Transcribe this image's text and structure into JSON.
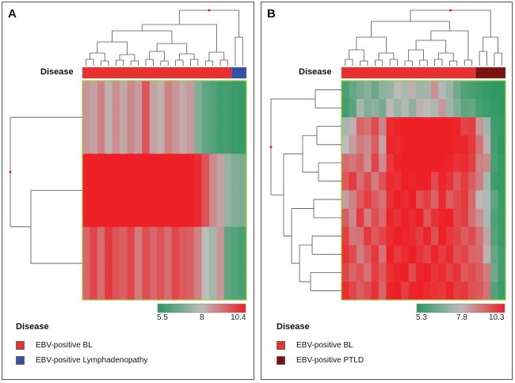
{
  "chart_data": [
    {
      "type": "heatmap",
      "panel_label": "A",
      "annotation_label": "Disease",
      "groups": [
        {
          "name": "EBV-positive BL",
          "color": "#e8312f",
          "sample_count": 20
        },
        {
          "name": "EBV-positive Lymphadenopathy",
          "color": "#3352a6",
          "sample_count": 2
        }
      ],
      "color_scale": {
        "low": 5.5,
        "mid": 8,
        "high": 10.4,
        "low_color": "#2a9860",
        "mid_color": "#bcbcbc",
        "high_color": "#ee1f25",
        "tick_labels": [
          "5.5",
          "8",
          "10.4"
        ]
      },
      "legend_title": "Disease",
      "legend": [
        {
          "label": "EBV-positive BL",
          "color": "#e8312f"
        },
        {
          "label": "EBV-positive Lymphadenopathy",
          "color": "#3352a6"
        }
      ],
      "row_blocks": [
        {
          "rows": 7,
          "values": [
            8.6,
            8.4,
            8.9,
            8.2,
            8.7,
            8.3,
            8.8,
            8.5,
            9.6,
            8.4,
            8.2,
            8.9,
            8.6,
            8.3,
            8.5,
            7.0,
            6.4,
            6.2,
            5.9,
            6.0,
            5.8,
            5.7
          ]
        },
        {
          "rows": 7,
          "values": [
            10.4,
            10.4,
            10.4,
            10.4,
            10.4,
            10.4,
            10.4,
            10.4,
            10.4,
            10.4,
            10.4,
            10.4,
            10.4,
            10.4,
            10.4,
            10.2,
            9.6,
            8.8,
            8.4,
            7.3,
            7.0,
            6.9
          ]
        },
        {
          "rows": 7,
          "values": [
            9.3,
            9.8,
            9.2,
            10.0,
            9.6,
            9.4,
            9.8,
            9.0,
            9.7,
            9.3,
            9.6,
            9.2,
            9.8,
            9.5,
            9.4,
            8.9,
            8.0,
            7.6,
            8.6,
            6.4,
            6.2,
            6.0
          ]
        }
      ]
    },
    {
      "type": "heatmap",
      "panel_label": "B",
      "annotation_label": "Disease",
      "groups": [
        {
          "name": "EBV-positive BL",
          "color": "#e8312f",
          "sample_count": 18
        },
        {
          "name": "EBV-positive PTLD",
          "color": "#7a1212",
          "sample_count": 4
        }
      ],
      "color_scale": {
        "low": 5.3,
        "mid": 7.8,
        "high": 10.3,
        "low_color": "#2a9860",
        "mid_color": "#bcbcbc",
        "high_color": "#ee1f25",
        "tick_labels": [
          "5.3",
          "7.8",
          "10.3"
        ]
      },
      "legend_title": "Disease",
      "legend": [
        {
          "label": "EBV-positive BL",
          "color": "#e8312f"
        },
        {
          "label": "EBV-positive PTLD",
          "color": "#7a1212"
        }
      ],
      "matrix": [
        [
          5.8,
          6.3,
          6.6,
          6.9,
          6.4,
          7.0,
          7.1,
          7.7,
          7.5,
          8.0,
          7.3,
          7.4,
          8.5,
          7.6,
          7.2,
          6.5,
          6.0,
          5.8,
          5.6,
          5.5,
          5.4,
          5.4
        ],
        [
          5.7,
          6.1,
          7.4,
          6.8,
          7.0,
          6.6,
          7.9,
          7.2,
          7.6,
          7.0,
          8.0,
          7.8,
          7.5,
          8.4,
          7.3,
          6.8,
          6.2,
          6.3,
          5.8,
          5.6,
          5.5,
          5.4
        ],
        [
          7.4,
          8.0,
          9.2,
          9.0,
          9.6,
          8.7,
          10.1,
          10.2,
          10.3,
          10.3,
          10.3,
          10.3,
          10.3,
          10.3,
          10.3,
          10.2,
          9.7,
          9.8,
          8.4,
          7.3,
          5.6,
          5.5
        ],
        [
          7.8,
          8.3,
          8.8,
          8.6,
          9.3,
          8.2,
          10.2,
          10.1,
          10.3,
          10.3,
          10.3,
          10.3,
          10.3,
          10.3,
          10.3,
          10.2,
          10.2,
          9.9,
          9.0,
          8.0,
          5.7,
          5.4
        ],
        [
          9.1,
          8.9,
          9.2,
          8.5,
          9.7,
          8.6,
          9.9,
          10.2,
          10.3,
          10.3,
          10.3,
          10.3,
          10.3,
          10.3,
          10.2,
          10.0,
          10.1,
          9.8,
          8.7,
          8.6,
          5.8,
          5.5
        ],
        [
          9.4,
          9.9,
          9.0,
          9.6,
          8.8,
          9.5,
          10.1,
          10.0,
          10.3,
          10.2,
          10.3,
          10.3,
          9.6,
          10.2,
          10.0,
          9.4,
          9.8,
          9.3,
          8.8,
          7.4,
          5.6,
          5.5
        ],
        [
          8.3,
          8.7,
          9.4,
          9.8,
          9.3,
          9.0,
          10.0,
          10.3,
          10.1,
          10.3,
          9.5,
          9.8,
          9.2,
          10.1,
          9.3,
          9.6,
          9.9,
          9.1,
          7.9,
          7.6,
          6.2,
          5.5
        ],
        [
          9.3,
          8.6,
          9.9,
          8.8,
          9.6,
          9.1,
          10.2,
          10.0,
          10.3,
          10.1,
          10.3,
          9.4,
          10.0,
          10.2,
          10.3,
          9.6,
          9.8,
          9.0,
          8.5,
          7.5,
          5.9,
          5.6
        ],
        [
          9.8,
          8.9,
          9.0,
          9.9,
          9.4,
          9.7,
          10.1,
          10.3,
          10.2,
          10.1,
          9.8,
          10.2,
          9.5,
          10.3,
          9.9,
          9.7,
          9.3,
          9.6,
          9.0,
          8.2,
          6.0,
          5.6
        ],
        [
          10.0,
          9.6,
          8.8,
          9.3,
          9.9,
          9.0,
          10.3,
          9.9,
          10.1,
          10.3,
          10.0,
          9.7,
          10.2,
          9.8,
          10.1,
          9.5,
          9.7,
          9.2,
          9.1,
          8.0,
          6.3,
          5.7
        ],
        [
          9.7,
          9.2,
          9.5,
          9.0,
          9.8,
          9.4,
          10.0,
          10.2,
          10.3,
          9.6,
          10.2,
          10.3,
          9.9,
          10.1,
          9.7,
          10.0,
          9.4,
          9.6,
          9.3,
          8.8,
          6.5,
          5.7
        ],
        [
          10.1,
          9.7,
          9.3,
          9.6,
          10.0,
          9.2,
          10.2,
          10.3,
          9.8,
          10.2,
          10.3,
          10.1,
          10.0,
          9.9,
          10.2,
          9.8,
          9.9,
          9.5,
          9.4,
          9.0,
          6.0,
          5.6
        ]
      ]
    }
  ]
}
